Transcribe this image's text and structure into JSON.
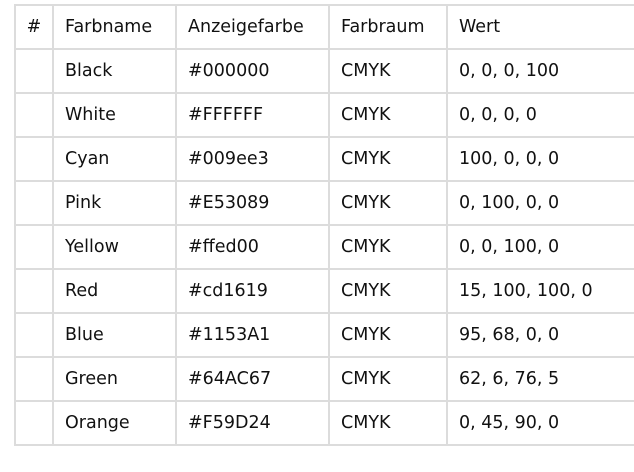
{
  "table": {
    "headers": [
      "#",
      "Farbname",
      "Anzeigefarbe",
      "Farbraum",
      "Wert"
    ],
    "rows": [
      {
        "num": "",
        "name": "Black",
        "display": "#000000",
        "space": "CMYK",
        "value": "0, 0, 0, 100"
      },
      {
        "num": "",
        "name": "White",
        "display": "#FFFFFF",
        "space": "CMYK",
        "value": "0, 0, 0, 0"
      },
      {
        "num": "",
        "name": "Cyan",
        "display": "#009ee3",
        "space": "CMYK",
        "value": "100, 0, 0, 0"
      },
      {
        "num": "",
        "name": "Pink",
        "display": "#E53089",
        "space": "CMYK",
        "value": "0, 100, 0, 0"
      },
      {
        "num": "",
        "name": "Yellow",
        "display": "#ffed00",
        "space": "CMYK",
        "value": "0, 0, 100, 0"
      },
      {
        "num": "",
        "name": "Red",
        "display": "#cd1619",
        "space": "CMYK",
        "value": "15, 100, 100, 0"
      },
      {
        "num": "",
        "name": "Blue",
        "display": "#1153A1",
        "space": "CMYK",
        "value": "95, 68, 0, 0"
      },
      {
        "num": "",
        "name": "Green",
        "display": "#64AC67",
        "space": "CMYK",
        "value": "62, 6, 76, 5"
      },
      {
        "num": "",
        "name": "Orange",
        "display": "#F59D24",
        "space": "CMYK",
        "value": "0, 45, 90, 0"
      }
    ]
  }
}
